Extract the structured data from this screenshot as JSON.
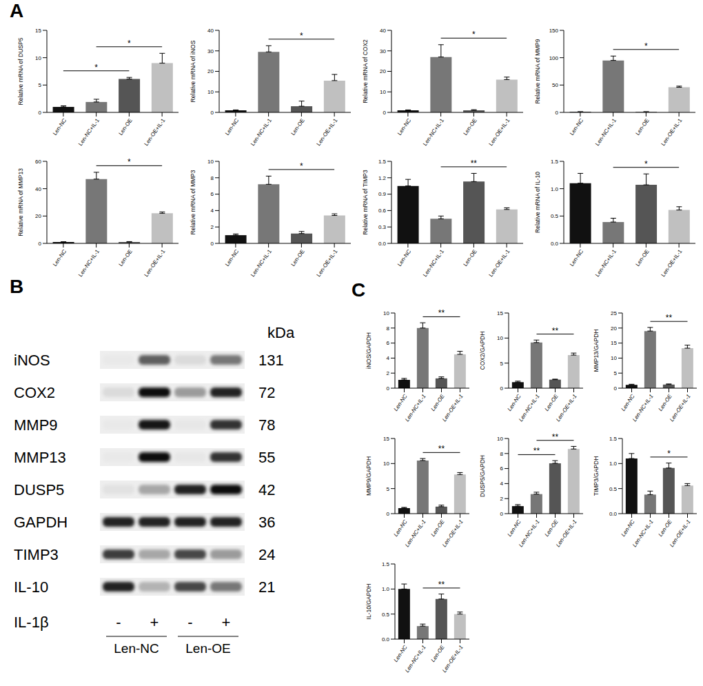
{
  "panel_labels": [
    "A",
    "B",
    "C"
  ],
  "chart_data": [
    {
      "type": "bar",
      "y_label": "Relative mRNA of DUSP5",
      "categories": [
        "Len-NC",
        "Len-NC+IL-1",
        "Len-OE",
        "Len-OE+IL-1"
      ],
      "values": [
        1.0,
        1.9,
        6.1,
        9.0
      ],
      "errors": [
        0.2,
        0.5,
        0.3,
        1.8
      ],
      "colors": [
        "#111111",
        "#777777",
        "#555555",
        "#c0c0c0"
      ],
      "ylim": [
        0,
        15
      ],
      "yticks": [
        0,
        5,
        10,
        15
      ],
      "annotations": [
        {
          "from": "Len-NC",
          "to": "Len-OE",
          "label": "*"
        },
        {
          "from": "Len-NC+IL-1",
          "to": "Len-OE+IL-1",
          "label": "*"
        }
      ]
    },
    {
      "type": "bar",
      "y_label": "Relative mRNA of iNOS",
      "categories": [
        "Len-NC",
        "Len-NC+IL-1",
        "Len-OE",
        "Len-OE+IL-1"
      ],
      "values": [
        1.0,
        29.5,
        3.0,
        15.5
      ],
      "errors": [
        0.2,
        3.0,
        2.5,
        3.0
      ],
      "colors": [
        "#111111",
        "#777777",
        "#555555",
        "#c0c0c0"
      ],
      "ylim": [
        0,
        40
      ],
      "yticks": [
        0,
        10,
        20,
        30,
        40
      ],
      "annotations": [
        {
          "from": "Len-NC+IL-1",
          "to": "Len-OE+IL-1",
          "label": "*"
        }
      ]
    },
    {
      "type": "bar",
      "y_label": "Relative mRNA of COX2",
      "categories": [
        "Len-NC",
        "Len-NC+IL-1",
        "Len-OE",
        "Len-OE+IL-1"
      ],
      "values": [
        1.0,
        27.0,
        1.0,
        16.0
      ],
      "errors": [
        0.2,
        6.0,
        0.3,
        1.2
      ],
      "colors": [
        "#111111",
        "#777777",
        "#555555",
        "#c0c0c0"
      ],
      "ylim": [
        0,
        40
      ],
      "yticks": [
        0,
        10,
        20,
        30,
        40
      ],
      "annotations": [
        {
          "from": "Len-NC+IL-1",
          "to": "Len-OE+IL-1",
          "label": "*"
        }
      ]
    },
    {
      "type": "bar",
      "y_label": "Relative mRNA of MMP9",
      "categories": [
        "Len-NC",
        "Len-NC+IL-1",
        "Len-OE",
        "Len-OE+IL-1"
      ],
      "values": [
        1.0,
        95.0,
        1.0,
        46.0
      ],
      "errors": [
        0.2,
        8.0,
        0.2,
        2.0
      ],
      "colors": [
        "#111111",
        "#777777",
        "#555555",
        "#c0c0c0"
      ],
      "ylim": [
        0,
        150
      ],
      "yticks": [
        0,
        50,
        100,
        150
      ],
      "annotations": [
        {
          "from": "Len-NC+IL-1",
          "to": "Len-OE+IL-1",
          "label": "*"
        }
      ]
    },
    {
      "type": "bar",
      "y_label": "Relative mRNA of MMP13",
      "categories": [
        "Len-NC",
        "Len-NC+IL-1",
        "Len-OE",
        "Len-OE+IL-1"
      ],
      "values": [
        1.0,
        47.0,
        1.0,
        22.0
      ],
      "errors": [
        0.2,
        5.0,
        0.3,
        1.0
      ],
      "colors": [
        "#111111",
        "#777777",
        "#555555",
        "#c0c0c0"
      ],
      "ylim": [
        0,
        60
      ],
      "yticks": [
        0,
        20,
        40,
        60
      ],
      "annotations": [
        {
          "from": "Len-NC+IL-1",
          "to": "Len-OE+IL-1",
          "label": "*"
        }
      ]
    },
    {
      "type": "bar",
      "y_label": "Relative mRNA of MMP3",
      "categories": [
        "Len-NC",
        "Len-NC+IL-1",
        "Len-OE",
        "Len-OE+IL-1"
      ],
      "values": [
        1.0,
        7.2,
        1.2,
        3.4
      ],
      "errors": [
        0.15,
        1.0,
        0.25,
        0.2
      ],
      "colors": [
        "#111111",
        "#777777",
        "#555555",
        "#c0c0c0"
      ],
      "ylim": [
        0,
        10
      ],
      "yticks": [
        0,
        2,
        4,
        6,
        8,
        10
      ],
      "annotations": [
        {
          "from": "Len-NC+IL-1",
          "to": "Len-OE+IL-1",
          "label": "*"
        }
      ]
    },
    {
      "type": "bar",
      "y_label": "Relative mRNA of TIMP3",
      "categories": [
        "Len-NC",
        "Len-NC+IL-1",
        "Len-OE",
        "Len-OE+IL-1"
      ],
      "values": [
        1.05,
        0.45,
        1.13,
        0.62
      ],
      "errors": [
        0.12,
        0.05,
        0.15,
        0.03
      ],
      "colors": [
        "#111111",
        "#777777",
        "#555555",
        "#c0c0c0"
      ],
      "ylim": [
        0,
        1.5
      ],
      "yticks": [
        {
          "value": 0,
          "label": "0.0"
        },
        0.3,
        0.6,
        0.9,
        1.2,
        1.5
      ],
      "annotations": [
        {
          "from": "Len-NC+IL-1",
          "to": "Len-OE+IL-1",
          "label": "**"
        }
      ]
    },
    {
      "type": "bar",
      "y_label": "Relative mRNA of IL-10",
      "categories": [
        "Len-NC",
        "Len-NC+IL-1",
        "Len-OE",
        "Len-OE+IL-1"
      ],
      "values": [
        1.1,
        0.39,
        1.07,
        0.61
      ],
      "errors": [
        0.18,
        0.07,
        0.2,
        0.06
      ],
      "colors": [
        "#111111",
        "#777777",
        "#555555",
        "#c0c0c0"
      ],
      "ylim": [
        0,
        1.5
      ],
      "yticks": [
        {
          "value": 0,
          "label": "0.0"
        },
        0.5,
        {
          "value": 1,
          "label": "1.0"
        },
        1.5
      ],
      "annotations": [
        {
          "from": "Len-NC+IL-1",
          "to": "Len-OE+IL-1",
          "label": "*"
        }
      ]
    },
    {
      "type": "bar",
      "y_label": "iNOS/GAPDH",
      "categories": [
        "Len-NC",
        "Len-NC+IL-1",
        "Len-OE",
        "Len-OE+IL-1"
      ],
      "values": [
        1.1,
        8.0,
        1.3,
        4.5
      ],
      "errors": [
        0.2,
        0.7,
        0.2,
        0.4
      ],
      "colors": [
        "#111111",
        "#777777",
        "#555555",
        "#c0c0c0"
      ],
      "ylim": [
        0,
        10
      ],
      "yticks": [
        0,
        2,
        4,
        6,
        8,
        10
      ],
      "annotations": [
        {
          "from": "Len-NC+IL-1",
          "to": "Len-OE+IL-1",
          "label": "**"
        }
      ]
    },
    {
      "type": "bar",
      "y_label": "COX2/GAPDH",
      "categories": [
        "Len-NC",
        "Len-NC+IL-1",
        "Len-OE",
        "Len-OE+IL-1"
      ],
      "values": [
        1.2,
        9.1,
        1.7,
        6.6
      ],
      "errors": [
        0.2,
        0.5,
        0.1,
        0.4
      ],
      "colors": [
        "#111111",
        "#777777",
        "#555555",
        "#c0c0c0"
      ],
      "ylim": [
        0,
        15
      ],
      "yticks": [
        0,
        5,
        10,
        15
      ],
      "annotations": [
        {
          "from": "Len-NC+IL-1",
          "to": "Len-OE+IL-1",
          "label": "**"
        }
      ]
    },
    {
      "type": "bar",
      "y_label": "MMP13/GAPDH",
      "categories": [
        "Len-NC",
        "Len-NC+IL-1",
        "Len-OE",
        "Len-OE+IL-1"
      ],
      "values": [
        1.1,
        19.0,
        1.2,
        13.3
      ],
      "errors": [
        0.2,
        1.2,
        0.2,
        1.0
      ],
      "colors": [
        "#111111",
        "#777777",
        "#555555",
        "#c0c0c0"
      ],
      "ylim": [
        0,
        25
      ],
      "yticks": [
        0,
        5,
        10,
        15,
        20,
        25
      ],
      "annotations": [
        {
          "from": "Len-NC+IL-1",
          "to": "Len-OE+IL-1",
          "label": "**"
        }
      ]
    },
    {
      "type": "bar",
      "y_label": "MMP9/GAPDH",
      "categories": [
        "Len-NC",
        "Len-NC+IL-1",
        "Len-OE",
        "Len-OE+IL-1"
      ],
      "values": [
        1.1,
        10.6,
        1.4,
        7.8
      ],
      "errors": [
        0.15,
        0.4,
        0.3,
        0.4
      ],
      "colors": [
        "#111111",
        "#777777",
        "#555555",
        "#c0c0c0"
      ],
      "ylim": [
        0,
        15
      ],
      "yticks": [
        0,
        5,
        10,
        15
      ],
      "annotations": [
        {
          "from": "Len-NC+IL-1",
          "to": "Len-OE+IL-1",
          "label": "**"
        }
      ]
    },
    {
      "type": "bar",
      "y_label": "DUSP5/GAPDH",
      "categories": [
        "Len-NC",
        "Len-NC+IL-1",
        "Len-OE",
        "Len-OE+IL-1"
      ],
      "values": [
        1.0,
        2.6,
        6.7,
        8.6
      ],
      "errors": [
        0.2,
        0.25,
        0.35,
        0.35
      ],
      "colors": [
        "#111111",
        "#777777",
        "#555555",
        "#c0c0c0"
      ],
      "ylim": [
        0,
        10
      ],
      "yticks": [
        0,
        2,
        4,
        6,
        8,
        10
      ],
      "annotations": [
        {
          "from": "Len-NC",
          "to": "Len-OE",
          "label": "**"
        },
        {
          "from": "Len-NC+IL-1",
          "to": "Len-OE+IL-1",
          "label": "**"
        }
      ]
    },
    {
      "type": "bar",
      "y_label": "TIMP3/GAPDH",
      "categories": [
        "Len-NC",
        "Len-NC+IL-1",
        "Len-OE",
        "Len-OE+IL-1"
      ],
      "values": [
        1.1,
        0.38,
        0.91,
        0.56
      ],
      "errors": [
        0.1,
        0.07,
        0.1,
        0.04
      ],
      "colors": [
        "#111111",
        "#777777",
        "#555555",
        "#c0c0c0"
      ],
      "ylim": [
        0,
        1.5
      ],
      "yticks": [
        {
          "value": 0,
          "label": "0.0"
        },
        0.5,
        {
          "value": 1,
          "label": "1.0"
        },
        1.5
      ],
      "annotations": [
        {
          "from": "Len-NC+IL-1",
          "to": "Len-OE+IL-1",
          "label": "*"
        }
      ]
    },
    {
      "type": "bar",
      "y_label": "IL-10/GAPDH",
      "categories": [
        "Len-NC",
        "Len-NC+IL-1",
        "Len-OE",
        "Len-OE+IL-1"
      ],
      "values": [
        1.0,
        0.26,
        0.8,
        0.5
      ],
      "errors": [
        0.1,
        0.04,
        0.1,
        0.04
      ],
      "colors": [
        "#111111",
        "#777777",
        "#555555",
        "#c0c0c0"
      ],
      "ylim": [
        0,
        1.5
      ],
      "yticks": [
        {
          "value": 0,
          "label": "0.0"
        },
        0.5,
        {
          "value": 1,
          "label": "1.0"
        },
        1.5
      ],
      "annotations": [
        {
          "from": "Len-NC+IL-1",
          "to": "Len-OE+IL-1",
          "label": "**"
        }
      ]
    }
  ],
  "blot": {
    "kda_header": "kDa",
    "rows": [
      {
        "label": "iNOS",
        "kda": 131,
        "intensity": [
          0.02,
          0.6,
          0.08,
          0.5
        ]
      },
      {
        "label": "COX2",
        "kda": 72,
        "intensity": [
          0.08,
          0.95,
          0.35,
          0.85
        ]
      },
      {
        "label": "MMP9",
        "kda": 78,
        "intensity": [
          0.02,
          0.9,
          0.03,
          0.8
        ]
      },
      {
        "label": "MMP13",
        "kda": 55,
        "intensity": [
          0.02,
          0.95,
          0.03,
          0.8
        ]
      },
      {
        "label": "DUSP5",
        "kda": 42,
        "intensity": [
          0.05,
          0.3,
          0.85,
          0.95
        ]
      },
      {
        "label": "GAPDH",
        "kda": 36,
        "intensity": [
          0.85,
          0.85,
          0.85,
          0.85
        ]
      },
      {
        "label": "TIMP3",
        "kda": 24,
        "intensity": [
          0.75,
          0.3,
          0.7,
          0.35
        ]
      },
      {
        "label": "IL-10",
        "kda": 21,
        "intensity": [
          0.85,
          0.25,
          0.7,
          0.5
        ]
      }
    ],
    "treatment_label": "IL-1β",
    "treatment": [
      "-",
      "+",
      "-",
      "+"
    ],
    "groups": [
      "Len-NC",
      "Len-OE"
    ]
  }
}
